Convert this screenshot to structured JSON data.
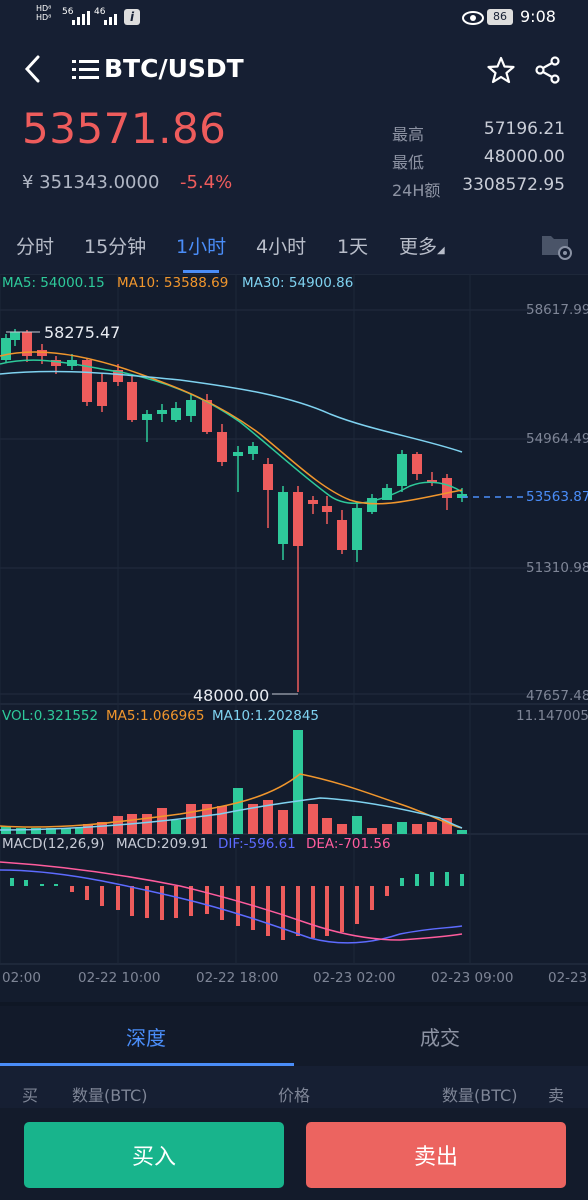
{
  "status_bar": {
    "time": "9:08",
    "battery": "86",
    "network_1": "56",
    "network_2": "46"
  },
  "header": {
    "pair": "BTC/USDT",
    "price": "53571.86",
    "cny_price": "¥ 351343.0000",
    "change": "-5.4%",
    "high_label": "最高",
    "high_value": "57196.21",
    "low_label": "最低",
    "low_value": "48000.00",
    "vol_label": "24H额",
    "vol_value": "3308572.95"
  },
  "tabs": [
    {
      "label": "分时"
    },
    {
      "label": "15分钟"
    },
    {
      "label": "1小时",
      "active": true
    },
    {
      "label": "4小时"
    },
    {
      "label": "1天"
    },
    {
      "label": "更多"
    }
  ],
  "ma_legend": {
    "ma5": "MA5: 54000.15",
    "ma10": "MA10: 53588.69",
    "ma30": "MA30: 54900.86"
  },
  "price_axis": [
    "58617.99",
    "54964.49",
    "51310.98",
    "47657.48"
  ],
  "current_price_label": "53563.87",
  "max_label": "58275.47",
  "min_label": "48000.00",
  "vol_legend": {
    "vol": "VOL:0.321552",
    "ma5": "MA5:1.066965",
    "ma10": "MA10:1.202845",
    "max": "11.147005"
  },
  "macd_legend": {
    "params": "MACD(12,26,9)",
    "macd": "MACD:209.91",
    "dif": "DIF:-596.61",
    "dea": "DEA:-701.56"
  },
  "time_axis": [
    "02:00",
    "02-22 10:00",
    "02-22 18:00",
    "02-23 02:00",
    "02-23 09:00",
    "02-23"
  ],
  "depth_tabs": {
    "depth": "深度",
    "trades": "成交"
  },
  "orderbook_header": {
    "buy": "买",
    "qty_left": "数量(BTC)",
    "price": "价格",
    "qty_right": "数量(BTC)",
    "sell": "卖"
  },
  "actions": {
    "buy": "买入",
    "sell": "卖出"
  },
  "colors": {
    "up": "#2ec99a",
    "down": "#ee5c5c",
    "accent": "#4a8df8",
    "ma5": "#2ec99a",
    "ma10": "#f0962d",
    "ma30": "#7fd2f0"
  }
}
